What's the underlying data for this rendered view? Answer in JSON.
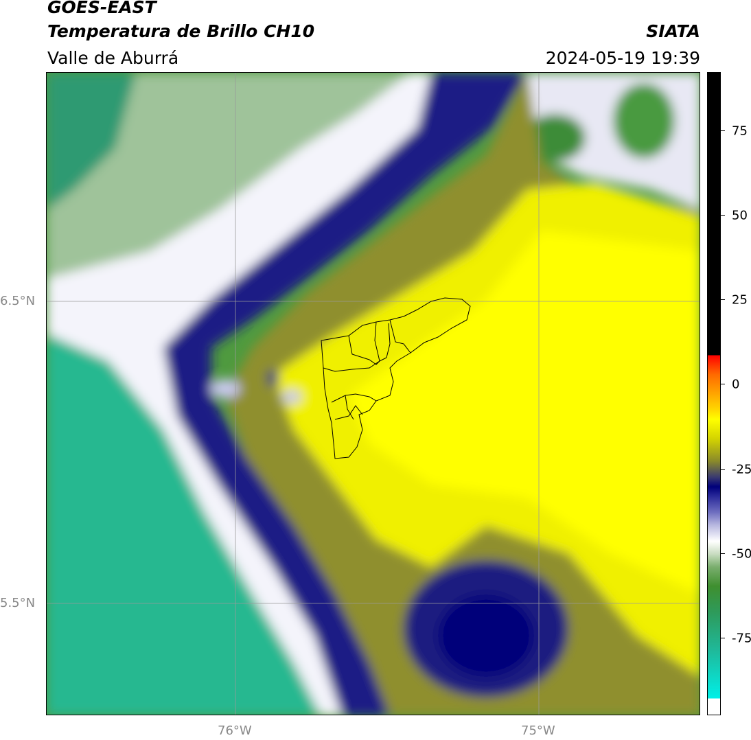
{
  "header": {
    "title": "GOES-EAST",
    "product": "Temperatura de Brillo CH10",
    "region": "Valle de Aburrá",
    "source": "SIATA",
    "datetime": "2024-05-19 19:39"
  },
  "map": {
    "lat_labels": [
      "6.5°N",
      "5.5°N"
    ],
    "lon_labels": [
      "76°W",
      "75°W"
    ],
    "colors": {
      "cold_cloud": "#ffff00",
      "mid_cloud": "#00007a",
      "clear_green": "#3f8f2f",
      "warm_teal": "#1fb99a"
    }
  },
  "colorbar": {
    "ticks": [
      "75",
      "50",
      "25",
      "0",
      "-25",
      "-50",
      "-75"
    ],
    "colors": [
      "#000000",
      "#ff0000",
      "#ffa500",
      "#ffff00",
      "#8a8a2a",
      "#00007a",
      "#ffffff",
      "#3f8f2f",
      "#1fb99a",
      "#00f0e8"
    ]
  }
}
